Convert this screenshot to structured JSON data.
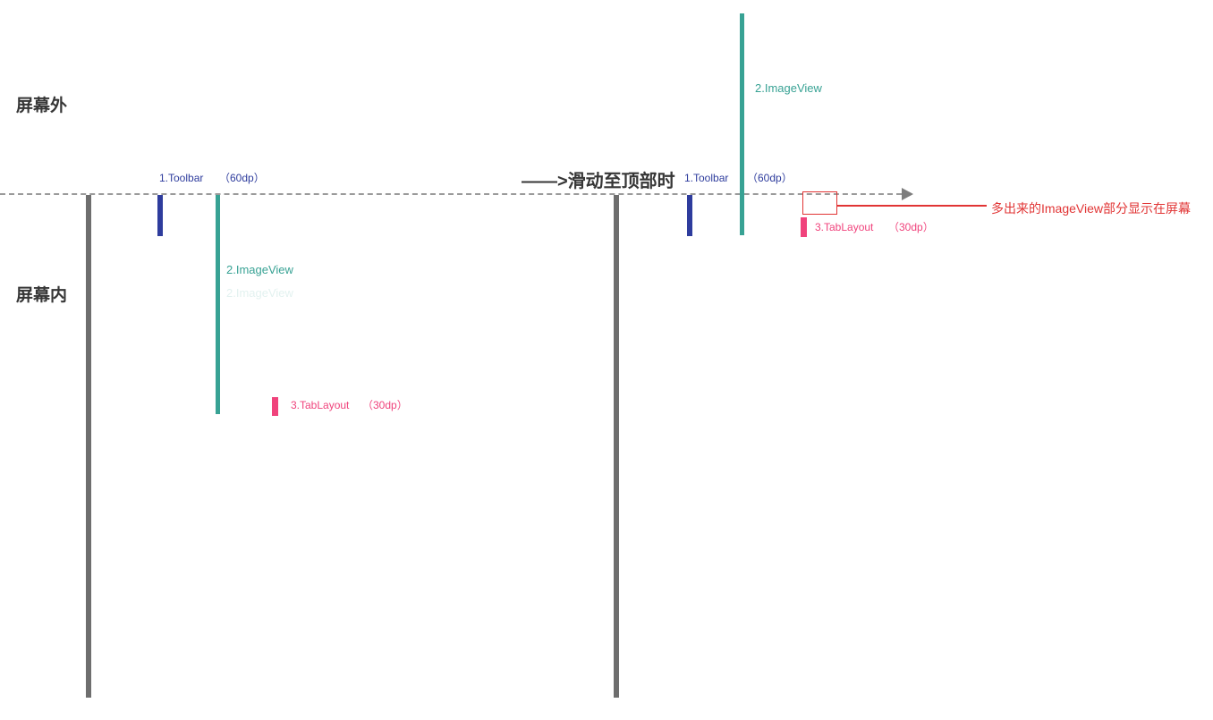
{
  "regions": {
    "offscreen_label": "屏幕外",
    "onscreen_label": "屏幕内"
  },
  "transition": {
    "label": "——>滑动至顶部时"
  },
  "before": {
    "toolbar": {
      "label": "1.Toolbar",
      "size": "（60dp）"
    },
    "imageview": {
      "label": "2.ImageView",
      "ghost": "2.ImageView"
    },
    "tablayout": {
      "label": "3.TabLayout",
      "size": "（30dp）"
    }
  },
  "after": {
    "toolbar": {
      "label": "1.Toolbar",
      "size": "（60dp）"
    },
    "imageview": {
      "label": "2.ImageView"
    },
    "tablayout": {
      "label": "3.TabLayout",
      "size": "（30dp）"
    }
  },
  "annotation": {
    "text": "多出来的ImageView部分显示在屏幕"
  },
  "colors": {
    "toolbar_blue": "#2e3c9d",
    "imageview_teal": "#38a294",
    "tablayout_pink": "#f0437c",
    "annotation_red": "#e13434",
    "screen_border_gray": "#6e6e6e",
    "dashed_line_gray": "#9a9a9a",
    "arrow_gray": "#7d7d7d",
    "heading_dark": "#363636"
  }
}
